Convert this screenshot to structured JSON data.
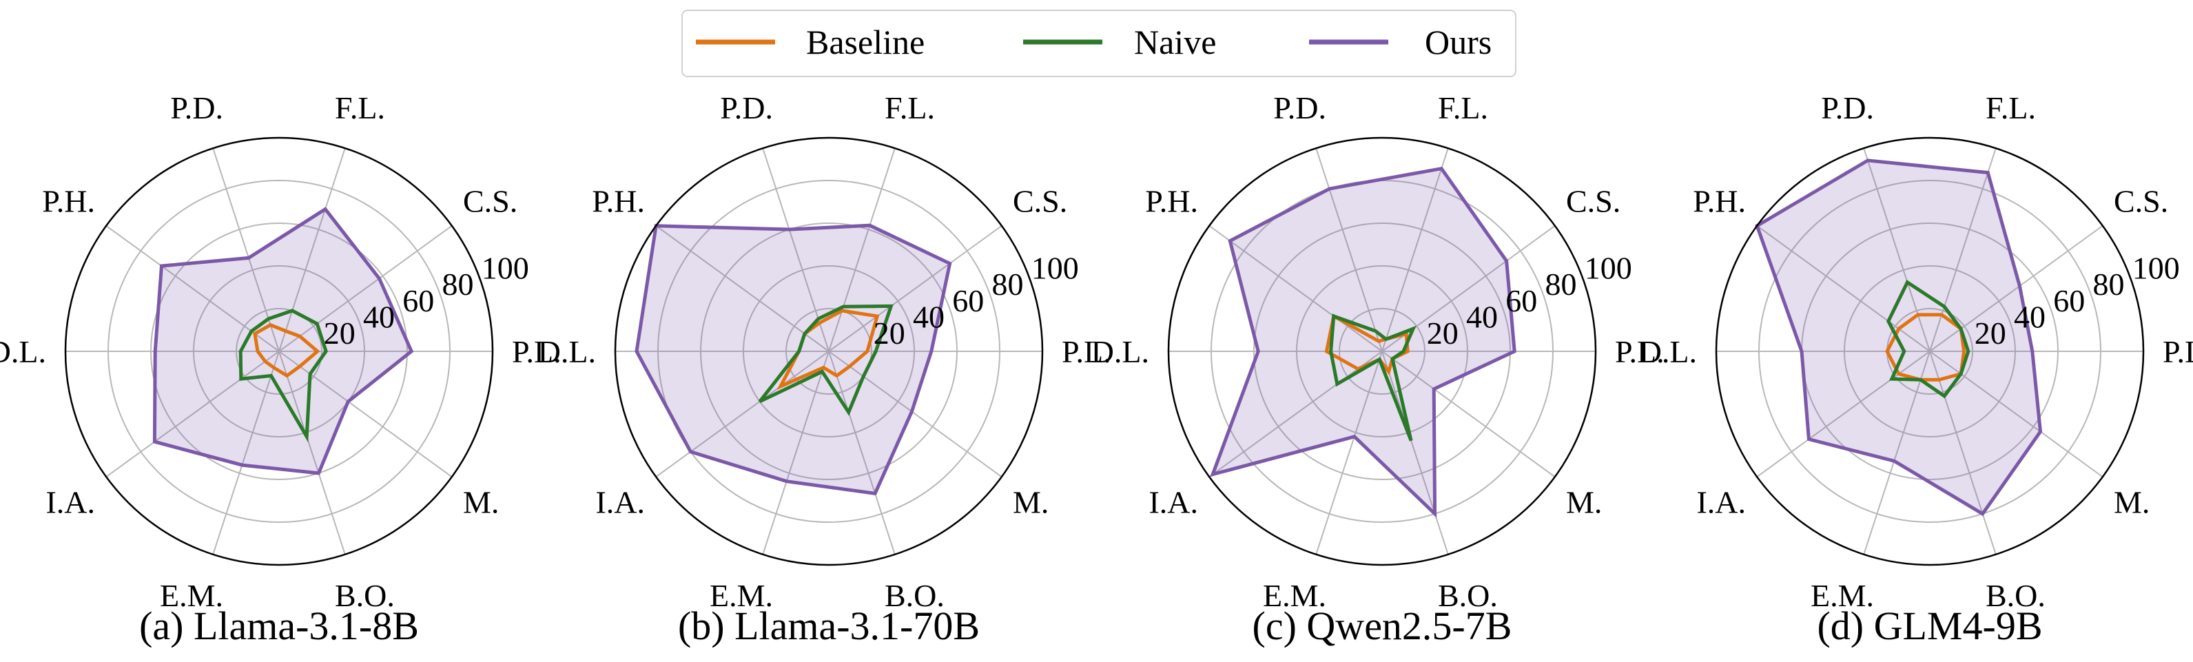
{
  "legend": {
    "items": [
      {
        "name": "Baseline",
        "color": "#e07414"
      },
      {
        "name": "Naive",
        "color": "#2a7a2a"
      },
      {
        "name": "Ours",
        "color": "#7b59a8"
      }
    ]
  },
  "fill_color": "#7b59a8",
  "chart_data": [
    {
      "type": "radar",
      "caption": "(a) Llama-3.1-8B",
      "categories": [
        "P.L.",
        "C.S.",
        "F.L.",
        "P.D.",
        "P.H.",
        "D.L.",
        "I.A.",
        "E.M.",
        "B.O.",
        "M."
      ],
      "rlim": [
        0,
        100
      ],
      "rticks": [
        "20",
        "40",
        "60",
        "80",
        "100"
      ],
      "series": [
        {
          "name": "Baseline",
          "values": [
            18,
            12,
            10,
            13,
            14,
            10,
            8,
            8,
            12,
            12
          ]
        },
        {
          "name": "Naive",
          "values": [
            22,
            22,
            20,
            16,
            16,
            18,
            22,
            12,
            42,
            18
          ]
        },
        {
          "name": "Ours",
          "values": [
            62,
            58,
            70,
            46,
            68,
            58,
            72,
            56,
            60,
            40
          ]
        }
      ]
    },
    {
      "type": "radar",
      "caption": "(b) Llama-3.1-70B",
      "categories": [
        "P.L.",
        "C.S.",
        "F.L.",
        "P.D.",
        "P.H.",
        "D.L.",
        "I.A.",
        "E.M.",
        "B.O.",
        "M."
      ],
      "rlim": [
        0,
        100
      ],
      "rticks": [
        "20",
        "40",
        "60",
        "80",
        "100"
      ],
      "series": [
        {
          "name": "Baseline",
          "values": [
            18,
            28,
            20,
            14,
            14,
            14,
            28,
            8,
            12,
            12
          ]
        },
        {
          "name": "Naive",
          "values": [
            22,
            36,
            22,
            16,
            14,
            14,
            40,
            10,
            30,
            20
          ]
        },
        {
          "name": "Ours",
          "values": [
            48,
            70,
            62,
            60,
            100,
            90,
            80,
            64,
            70,
            48
          ]
        }
      ]
    },
    {
      "type": "radar",
      "caption": "(c) Qwen2.5-7B",
      "categories": [
        "P.L.",
        "C.S.",
        "F.L.",
        "P.D.",
        "P.H.",
        "D.L.",
        "I.A.",
        "E.M.",
        "B.O.",
        "M."
      ],
      "rlim": [
        0,
        100
      ],
      "rticks": [
        "20",
        "40",
        "60",
        "80",
        "100"
      ],
      "series": [
        {
          "name": "Baseline",
          "values": [
            12,
            14,
            6,
            5,
            28,
            26,
            14,
            4,
            10,
            6
          ]
        },
        {
          "name": "Naive",
          "values": [
            10,
            18,
            6,
            10,
            28,
            24,
            26,
            4,
            44,
            6
          ]
        },
        {
          "name": "Ours",
          "values": [
            62,
            72,
            90,
            80,
            88,
            58,
            98,
            42,
            80,
            30
          ]
        }
      ]
    },
    {
      "type": "radar",
      "caption": "(d) GLM4-9B",
      "categories": [
        "P.L.",
        "C.S.",
        "F.L.",
        "P.D.",
        "P.H.",
        "D.L.",
        "I.A.",
        "E.M.",
        "B.O.",
        "M."
      ],
      "rlim": [
        0,
        100
      ],
      "rticks": [
        "20",
        "40",
        "60",
        "80",
        "100"
      ],
      "series": [
        {
          "name": "Baseline",
          "values": [
            16,
            18,
            18,
            18,
            18,
            20,
            18,
            14,
            14,
            18
          ]
        },
        {
          "name": "Naive",
          "values": [
            18,
            18,
            22,
            34,
            24,
            12,
            22,
            14,
            22,
            18
          ]
        },
        {
          "name": "Ours",
          "values": [
            48,
            52,
            88,
            94,
            100,
            60,
            70,
            54,
            80,
            64
          ]
        }
      ]
    }
  ]
}
